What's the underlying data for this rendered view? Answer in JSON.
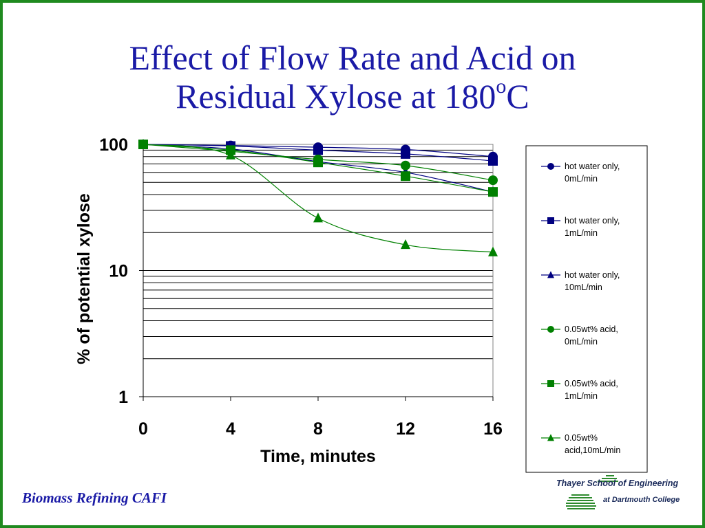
{
  "slide": {
    "title_line1": "Effect of Flow Rate and Acid  on",
    "title_line2_main": "Residual Xylose at 180",
    "title_line2_sup": "o",
    "title_line2_end": "C",
    "footer": "Biomass Refining CAFI",
    "logo": {
      "name": "Thayer School of Engineering",
      "sub": "at Dartmouth College"
    },
    "colors": {
      "title": "#1a1aa6",
      "border": "#1f8a1f",
      "navy_series": "#000080",
      "green_series": "#008000"
    }
  },
  "chart_data": {
    "type": "line",
    "title": "",
    "xlabel": "Time, minutes",
    "ylabel": "% of potential xylose",
    "x": [
      0,
      4,
      8,
      12,
      16
    ],
    "xlim": [
      0,
      16
    ],
    "ylim": [
      1,
      100
    ],
    "yscale": "log",
    "x_tick_labels": [
      "0",
      "4",
      "8",
      "12",
      "16"
    ],
    "y_tick_labels": [
      "1",
      "10",
      "100"
    ],
    "grid": "horizontal",
    "legend_position": "right",
    "series": [
      {
        "name": "hot water only,\n0mL/min",
        "marker": "circle",
        "color": "#000080",
        "values": [
          100,
          98,
          95,
          91,
          80
        ]
      },
      {
        "name": "hot water only,\n1mL/min",
        "marker": "square",
        "color": "#000080",
        "values": [
          100,
          97,
          90,
          84,
          74
        ]
      },
      {
        "name": "hot water only,\n10mL/min",
        "marker": "triangle",
        "color": "#000080",
        "values": [
          100,
          92,
          73,
          60,
          42
        ]
      },
      {
        "name": "0.05wt% acid,\n0mL/min",
        "marker": "circle",
        "color": "#008000",
        "values": [
          100,
          88,
          76,
          68,
          52
        ]
      },
      {
        "name": "0.05wt% acid,\n1mL/min",
        "marker": "square",
        "color": "#008000",
        "values": [
          100,
          90,
          72,
          56,
          42
        ]
      },
      {
        "name": "0.05wt%\nacid,10mL/min",
        "marker": "triangle",
        "color": "#008000",
        "values": [
          100,
          82,
          26,
          16,
          14
        ]
      }
    ]
  }
}
